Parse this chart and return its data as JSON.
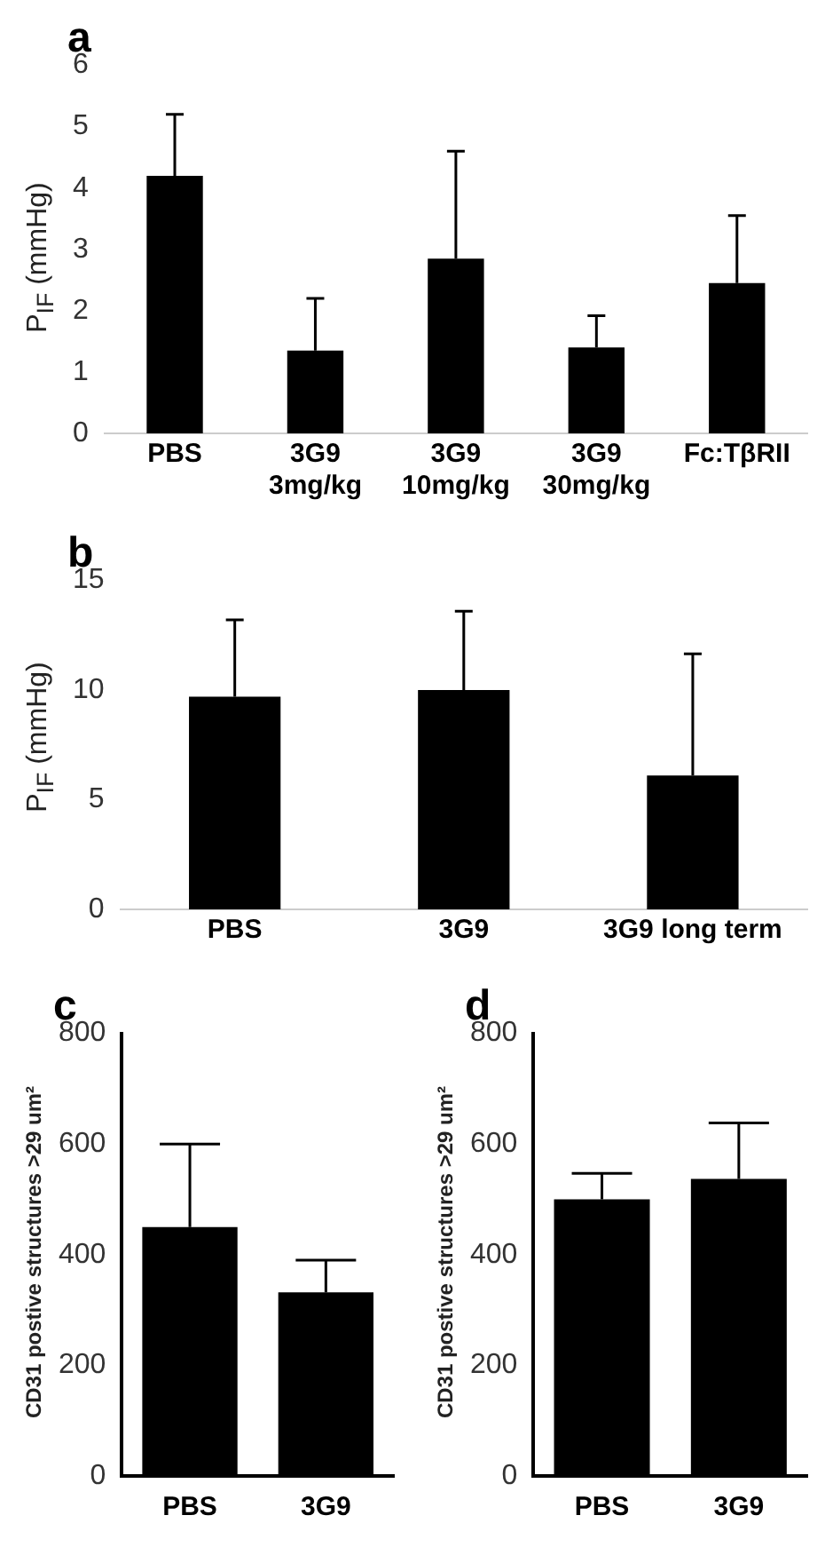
{
  "chart_data": [
    {
      "type": "bar",
      "title": "a",
      "ylabel": "P$_{IF}$ (mmHg)",
      "categories": [
        "PBS",
        "3G9\n3mg/kg",
        "3G9\n10mg/kg",
        "3G9\n30mg/kg",
        "Fc:TβRII"
      ],
      "color": "#000000",
      "values": [
        4.2,
        1.35,
        2.85,
        1.4,
        2.45
      ],
      "errors": [
        [
          4.2,
          5.2
        ],
        [
          1.35,
          2.2
        ],
        [
          2.85,
          4.6
        ],
        [
          1.4,
          1.92
        ],
        [
          2.45,
          3.55
        ]
      ],
      "ylim": [
        0,
        6
      ],
      "yticks": [
        0,
        1,
        2,
        3,
        4,
        5,
        6
      ],
      "grid": false,
      "legend": false
    },
    {
      "type": "bar",
      "title": "b",
      "ylabel": "P$_{IF}$ (mmHg)",
      "categories": [
        "PBS",
        "3G9",
        "3G9 long term"
      ],
      "color": "#000000",
      "values": [
        9.7,
        10.0,
        6.1
      ],
      "errors": [
        [
          9.7,
          13.2
        ],
        [
          10.0,
          13.6
        ],
        [
          6.1,
          11.65
        ]
      ],
      "ylim": [
        0,
        15
      ],
      "yticks": [
        0,
        5,
        10,
        15
      ],
      "grid": false,
      "legend": false
    },
    {
      "type": "bar",
      "title": "c",
      "ylabel": "CD31 postive structures >29 um²",
      "categories": [
        "PBS",
        "3G9"
      ],
      "color": "#000000",
      "values": [
        450,
        332
      ],
      "errors": [
        [
          450,
          600
        ],
        [
          332,
          390
        ]
      ],
      "ylim": [
        0,
        800
      ],
      "yticks": [
        0,
        200,
        400,
        600,
        800
      ],
      "grid": false,
      "legend": false
    },
    {
      "type": "bar",
      "title": "d",
      "ylabel": "CD31 postive structures >29 um²",
      "categories": [
        "PBS",
        "3G9"
      ],
      "color": "#000000",
      "values": [
        500,
        537
      ],
      "errors": [
        [
          500,
          547
        ],
        [
          537,
          638
        ]
      ],
      "ylim": [
        0,
        800
      ],
      "yticks": [
        0,
        200,
        400,
        600,
        800
      ],
      "grid": false,
      "legend": false
    }
  ]
}
